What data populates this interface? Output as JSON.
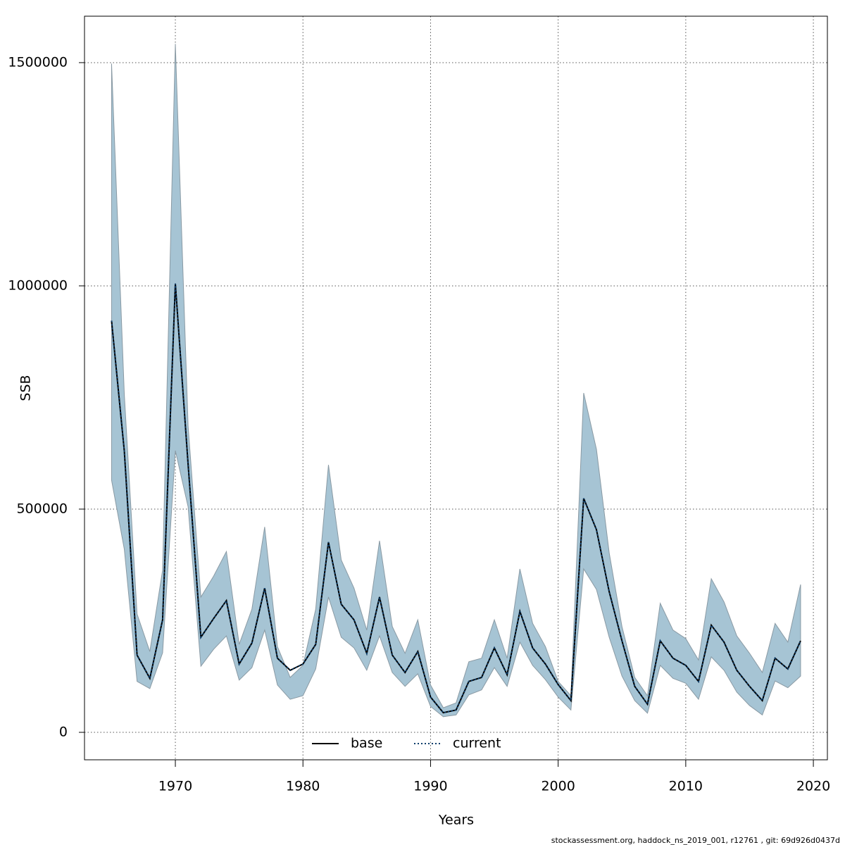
{
  "chart_data": {
    "type": "line",
    "xlabel": "Years",
    "ylabel": "SSB",
    "footer": "stockassessment.org, haddock_ns_2019_001, r12761 , git: 69d926d0437d",
    "x": [
      1965,
      1966,
      1967,
      1968,
      1969,
      1970,
      1971,
      1972,
      1973,
      1974,
      1975,
      1976,
      1977,
      1978,
      1979,
      1980,
      1981,
      1982,
      1983,
      1984,
      1985,
      1986,
      1987,
      1988,
      1989,
      1990,
      1991,
      1992,
      1993,
      1994,
      1995,
      1996,
      1997,
      1998,
      1999,
      2000,
      2001,
      2002,
      2003,
      2004,
      2005,
      2006,
      2007,
      2008,
      2009,
      2010,
      2011,
      2012,
      2013,
      2014,
      2015,
      2016,
      2017,
      2018,
      2019
    ],
    "series": [
      {
        "name": "base",
        "color": "#000000",
        "dash": "solid",
        "values": [
          922000,
          630000,
          173000,
          121000,
          252000,
          1005000,
          600000,
          213000,
          255000,
          295000,
          153000,
          200000,
          323000,
          166000,
          139000,
          153000,
          197000,
          426000,
          287000,
          252000,
          177000,
          303000,
          173000,
          134000,
          181000,
          79000,
          44000,
          50000,
          114000,
          123000,
          189000,
          129000,
          271000,
          189000,
          153000,
          107000,
          71000,
          524000,
          454000,
          315000,
          205000,
          103000,
          63000,
          205000,
          166000,
          150000,
          114000,
          240000,
          202000,
          139000,
          103000,
          71000,
          166000,
          142000,
          205000
        ]
      },
      {
        "name": "current",
        "color": "#0b3d6b",
        "dash": "dotted",
        "values": [
          922000,
          630000,
          173000,
          121000,
          252000,
          1005000,
          600000,
          213000,
          255000,
          295000,
          153000,
          200000,
          323000,
          166000,
          139000,
          153000,
          197000,
          426000,
          287000,
          252000,
          177000,
          303000,
          173000,
          134000,
          181000,
          79000,
          44000,
          50000,
          114000,
          123000,
          189000,
          129000,
          271000,
          189000,
          153000,
          107000,
          71000,
          524000,
          454000,
          315000,
          205000,
          103000,
          63000,
          205000,
          166000,
          150000,
          114000,
          240000,
          202000,
          139000,
          103000,
          71000,
          166000,
          142000,
          205000
        ]
      }
    ],
    "band": {
      "color": "#a6c4d4",
      "edge": "#8a9aa4",
      "upper": [
        1498000,
        757000,
        265000,
        181000,
        363000,
        1542000,
        686000,
        303000,
        350000,
        405000,
        197000,
        276000,
        460000,
        192000,
        123000,
        150000,
        276000,
        599000,
        386000,
        323000,
        229000,
        429000,
        237000,
        177000,
        252000,
        106000,
        55000,
        66000,
        158000,
        166000,
        252000,
        166000,
        366000,
        244000,
        192000,
        114000,
        82000,
        760000,
        634000,
        402000,
        237000,
        123000,
        82000,
        289000,
        229000,
        210000,
        162000,
        344000,
        292000,
        216000,
        177000,
        134000,
        244000,
        202000,
        331000
      ],
      "lower": [
        565000,
        410000,
        114000,
        98000,
        178000,
        631000,
        505000,
        148000,
        186000,
        216000,
        117000,
        145000,
        229000,
        106000,
        74000,
        82000,
        142000,
        303000,
        213000,
        189000,
        139000,
        216000,
        134000,
        103000,
        131000,
        58000,
        35000,
        39000,
        84000,
        95000,
        145000,
        103000,
        202000,
        150000,
        118000,
        79000,
        50000,
        366000,
        320000,
        213000,
        126000,
        71000,
        43000,
        150000,
        121000,
        110000,
        74000,
        169000,
        139000,
        90000,
        60000,
        39000,
        115000,
        100000,
        126000
      ]
    },
    "xlim": [
      1962.88,
      2021.1
    ],
    "ylim": [
      -61500,
      1604000
    ],
    "xticks": [
      1970,
      1980,
      1990,
      2000,
      2010,
      2020
    ],
    "yticks": [
      0,
      500000,
      1000000,
      1500000
    ],
    "grid": true,
    "legend": "bottom"
  }
}
